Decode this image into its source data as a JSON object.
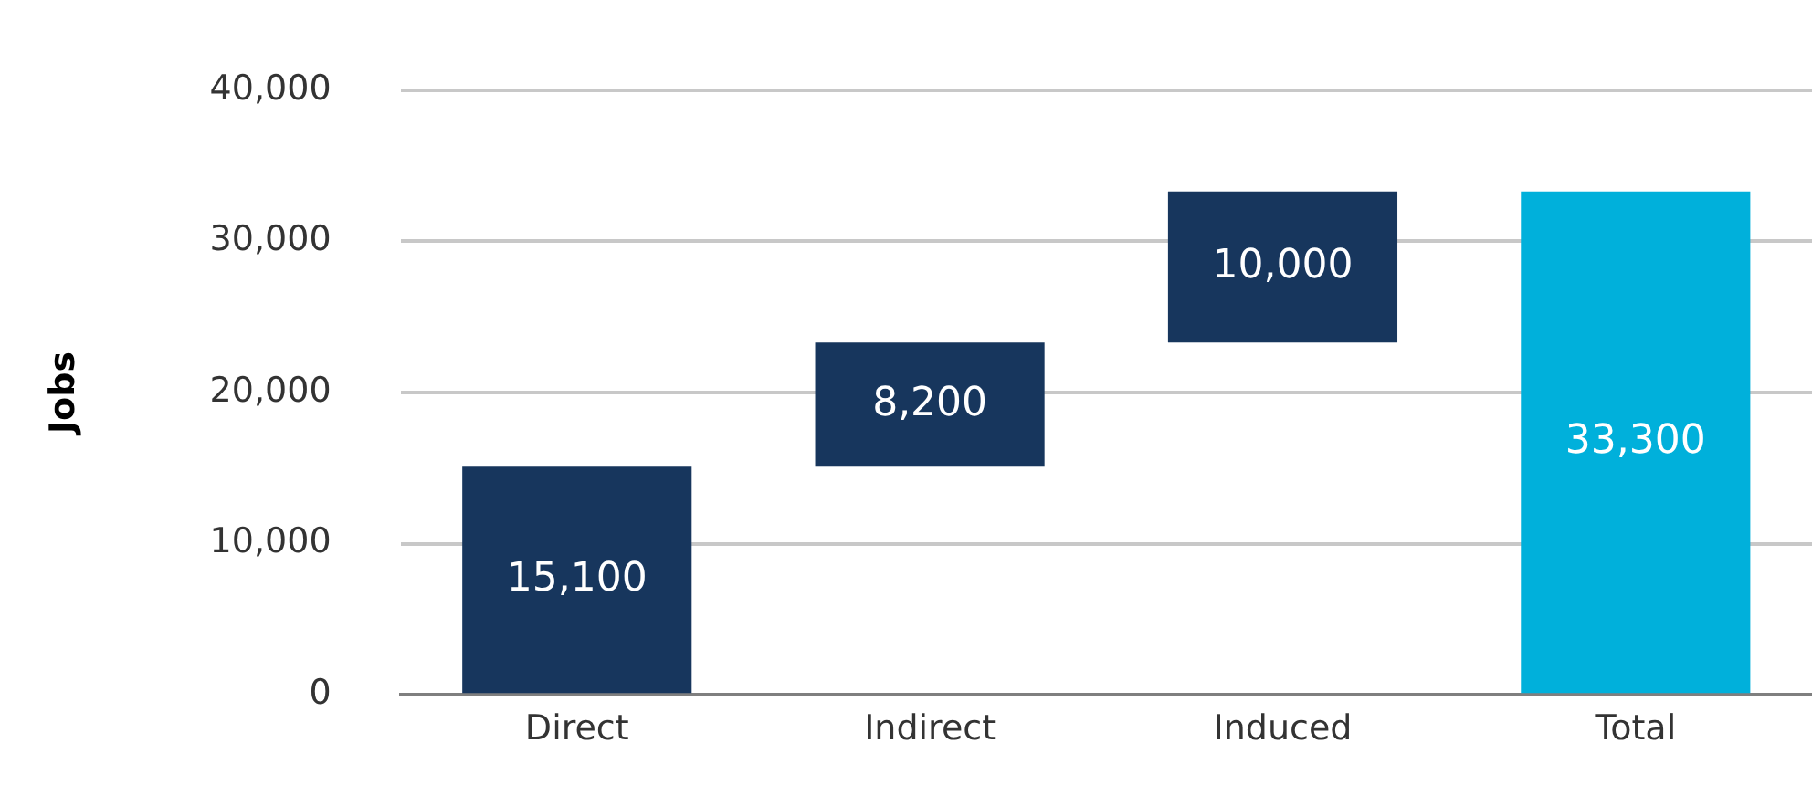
{
  "chart_data": {
    "type": "bar",
    "ylabel": "Jobs",
    "categories": [
      "Direct",
      "Indirect",
      "Induced",
      "Total"
    ],
    "values": [
      15100,
      8200,
      10000,
      33300
    ],
    "base": [
      0,
      15100,
      23300,
      0
    ],
    "colors": [
      "#17365d",
      "#17365d",
      "#17365d",
      "#00b0db"
    ],
    "value_labels": [
      "15,100",
      "8,200",
      "10,000",
      "33,300"
    ],
    "ylim": [
      0,
      40000
    ],
    "yticks": [
      {
        "value": 0,
        "label": "0"
      },
      {
        "value": 10000,
        "label": "10,000"
      },
      {
        "value": 20000,
        "label": "20,000"
      },
      {
        "value": 30000,
        "label": "30,000"
      },
      {
        "value": 40000,
        "label": "40,000"
      }
    ],
    "grid": "y",
    "legend": false
  }
}
